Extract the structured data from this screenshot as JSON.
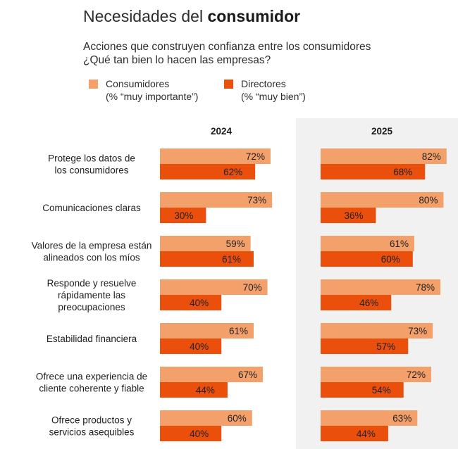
{
  "title": {
    "prefix": "Necesidades del ",
    "bold": "consumidor"
  },
  "subtitle_line1": "Acciones que construyen confianza entre los consumidores",
  "subtitle_line2": "¿Qué tan bien lo hacen las empresas?",
  "legend": [
    {
      "name": "Consumidores",
      "detail": "(% “muy importante”)",
      "color": "#f4a06a"
    },
    {
      "name": "Directores",
      "detail": "(% “muy bien”)",
      "color": "#ea4f0b"
    }
  ],
  "colors": {
    "consumers": "#f4a06a",
    "directors": "#ea4f0b",
    "panel_2025": "#f1f1f2"
  },
  "chart_data": {
    "type": "bar",
    "orientation": "horizontal",
    "title": "Acciones que construyen confianza entre los consumidores",
    "panels": [
      "2024",
      "2025"
    ],
    "categories": [
      [
        "Protege los datos de",
        "los consumidores"
      ],
      [
        "Comunicaciones claras"
      ],
      [
        "Valores de la empresa están",
        "alineados con los míos"
      ],
      [
        "Responde y resuelve",
        "rápidamente las",
        "preocupaciones"
      ],
      [
        "Estabilidad financiera"
      ],
      [
        "Ofrece una experiencia de",
        "cliente coherente y fiable"
      ],
      [
        "Ofrece productos y",
        "servicios asequibles"
      ]
    ],
    "series": [
      {
        "name": "Consumidores 2024",
        "values": [
          72,
          73,
          59,
          70,
          61,
          67,
          60
        ]
      },
      {
        "name": "Directores 2024",
        "values": [
          62,
          30,
          61,
          40,
          40,
          44,
          40
        ]
      },
      {
        "name": "Consumidores 2025",
        "values": [
          82,
          80,
          61,
          78,
          73,
          72,
          63
        ]
      },
      {
        "name": "Directores 2025",
        "values": [
          68,
          36,
          60,
          46,
          57,
          54,
          44
        ]
      }
    ],
    "value_suffix": "%",
    "xlim": [
      0,
      100
    ]
  }
}
